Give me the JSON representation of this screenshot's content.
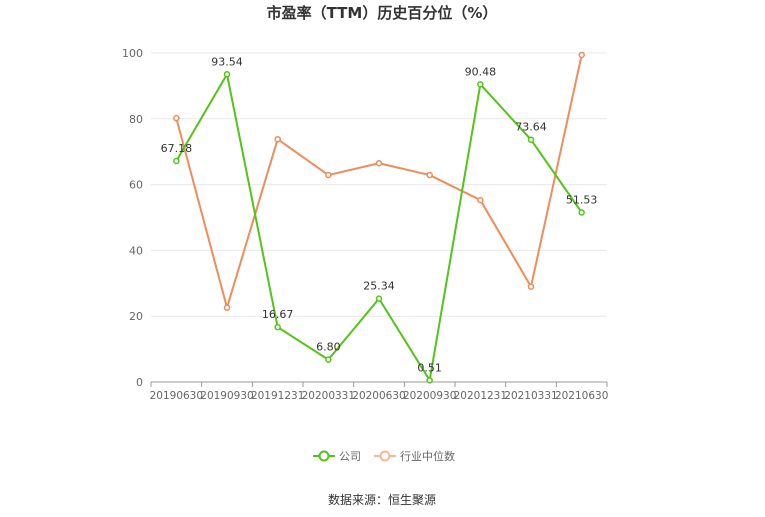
{
  "chart_data": {
    "type": "line",
    "title": "市盈率（TTM）历史百分位（%）",
    "categories": [
      "20190630",
      "20190930",
      "20191231",
      "20200331",
      "20200630",
      "20200930",
      "20201231",
      "20210331",
      "20210630"
    ],
    "series": [
      {
        "name": "公司",
        "color": "#52c41a",
        "values": [
          67.18,
          93.54,
          16.67,
          6.8,
          25.34,
          0.51,
          90.48,
          73.64,
          51.53
        ],
        "labels": [
          "67.18",
          "93.54",
          "16.67",
          "6.80",
          "25.34",
          "0.51",
          "90.48",
          "73.64",
          "51.53"
        ]
      },
      {
        "name": "行业中位数",
        "color": "#f08c5a",
        "values": [
          80.2,
          22.6,
          73.8,
          62.9,
          66.5,
          62.9,
          55.3,
          29.0,
          99.4
        ]
      }
    ],
    "yticks": [
      "0",
      "20",
      "40",
      "60",
      "80",
      "100"
    ],
    "ylim": [
      0,
      100
    ],
    "grid": true,
    "legend": "bottom-center"
  },
  "source": "数据来源：恒生聚源"
}
